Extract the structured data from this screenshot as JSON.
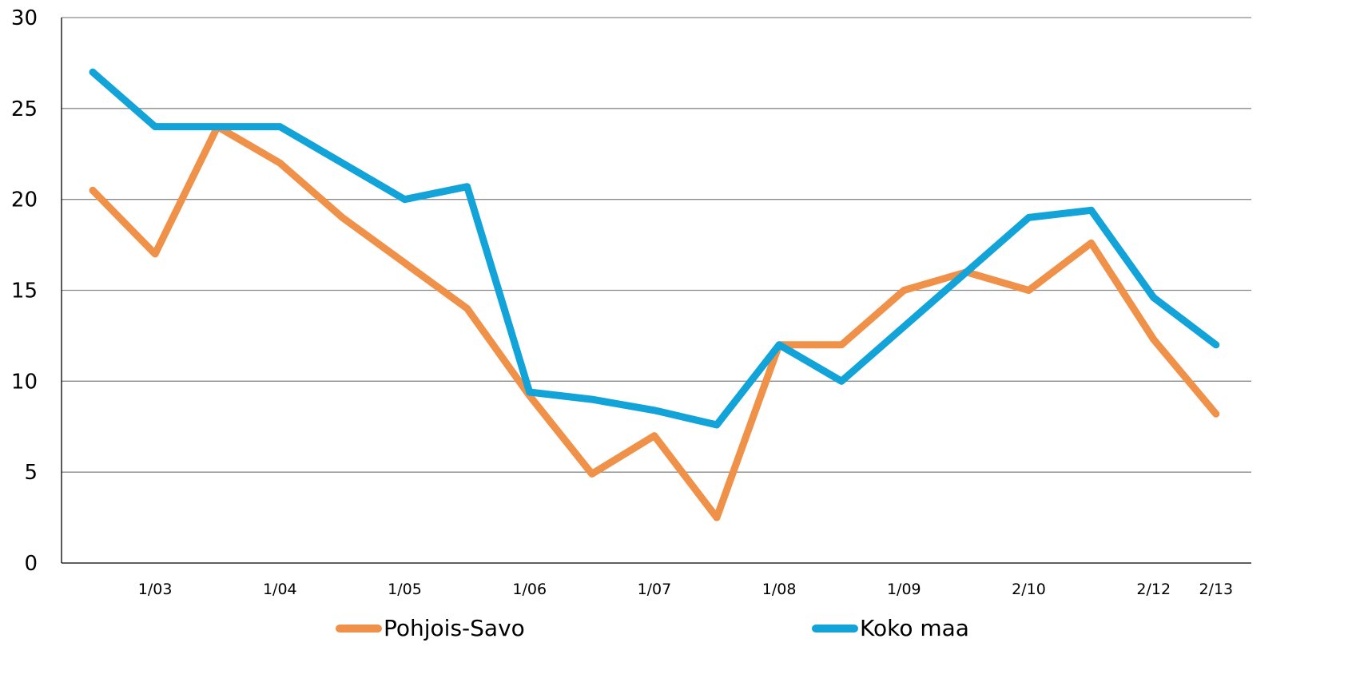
{
  "chart_data": {
    "type": "line",
    "title": "",
    "xlabel": "",
    "ylabel": "",
    "ylim": [
      0,
      30
    ],
    "yticks": [
      "0",
      "5",
      "10",
      "15",
      "20",
      "25",
      "30"
    ],
    "grid": true,
    "legend_position": "bottom",
    "x_points": 19,
    "x_tick_labels": [
      {
        "index": 1,
        "label": "1/03"
      },
      {
        "index": 3,
        "label": "1/04"
      },
      {
        "index": 5,
        "label": "1/05"
      },
      {
        "index": 7,
        "label": "1/06"
      },
      {
        "index": 9,
        "label": "1/07"
      },
      {
        "index": 11,
        "label": "1/08"
      },
      {
        "index": 13,
        "label": "1/09"
      },
      {
        "index": 15,
        "label": "2/10"
      },
      {
        "index": 17,
        "label": "2/12"
      },
      {
        "index": 18,
        "label": "2/13"
      }
    ],
    "series": [
      {
        "name": "Pohjois-Savo",
        "color": "#F0914A",
        "values": [
          20.5,
          17,
          24,
          22,
          19,
          16.5,
          14,
          9.2,
          4.9,
          7,
          2.5,
          12,
          12,
          15,
          16,
          15,
          17.6,
          12.3,
          8.2
        ]
      },
      {
        "name": "Koko maa",
        "color": "#12A3D8",
        "values": [
          27,
          24,
          24,
          24,
          22,
          20,
          20.7,
          9.4,
          9.0,
          8.4,
          7.6,
          12,
          10,
          13,
          16,
          19,
          19.4,
          14.6,
          12
        ]
      }
    ]
  },
  "legend": {
    "items": [
      {
        "label": "Pohjois-Savo",
        "color": "#F0914A"
      },
      {
        "label": "Koko maa",
        "color": "#12A3D8"
      }
    ]
  }
}
